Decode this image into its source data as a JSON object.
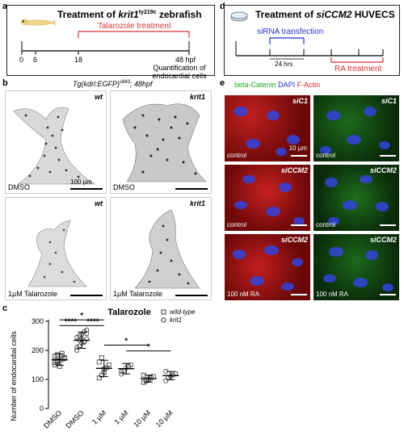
{
  "panel_a": {
    "label": "a",
    "title_prefix": "Treatment of ",
    "title_gene": "krit1",
    "title_sup": "ty219c",
    "title_suffix": " zebrafish",
    "treatment": "Talarozole treatment",
    "ticks": [
      "0",
      "6",
      "18",
      "48 hpf"
    ],
    "quant": "Quantification of endocardial cells"
  },
  "panel_b": {
    "label": "b",
    "title": "Tg(kdrl:EGFP)",
    "title_sup": "s843",
    "title_suffix": "; 48hpf",
    "panels": [
      {
        "genotype": "wt",
        "condition": "DMSO",
        "scalebar": "100 µm"
      },
      {
        "genotype": "krit1",
        "condition": "DMSO",
        "scalebar": ""
      },
      {
        "genotype": "wt",
        "condition": "1µM Talarozole",
        "scalebar": ""
      },
      {
        "genotype": "krit1",
        "condition": "1µM Talarozole",
        "scalebar": ""
      }
    ]
  },
  "panel_d": {
    "label": "d",
    "title_prefix": "Treatment of ",
    "title_gene": "siCCM2",
    "title_suffix": " HUVECS",
    "sirna": "siRNA transfection",
    "hrs": "24 hrs",
    "ra": "RA treatment"
  },
  "panel_e": {
    "label": "e",
    "legend": [
      {
        "text": "beta-Catenin",
        "color": "#22aa22"
      },
      {
        "text": "DAPI",
        "color": "#2233cc"
      },
      {
        "text": "F-Actin",
        "color": "#dd2222"
      }
    ],
    "rows": [
      {
        "left_tag": "siC1",
        "right_tag": "siC1",
        "left_cond": "control",
        "right_cond": "control",
        "scale": "10 µm"
      },
      {
        "left_tag": "siCCM2",
        "right_tag": "siCCM2",
        "left_cond": "control",
        "right_cond": "control",
        "scale": ""
      },
      {
        "left_tag": "siCCM2",
        "right_tag": "siCCM2",
        "left_cond": "100 nM RA",
        "right_cond": "100 nM RA",
        "scale": ""
      }
    ]
  },
  "panel_c": {
    "label": "c",
    "colors": {
      "marker": "#333333"
    }
  },
  "chart_data": {
    "type": "scatter",
    "title": "Talarozole",
    "ylabel": "Number of endocardial cells",
    "xlabel": "",
    "categories": [
      "DMSO",
      "DMSO",
      "1 µM",
      "1 µM",
      "10 µM",
      "10 µM"
    ],
    "ylim": [
      0,
      300
    ],
    "yticks": [
      0,
      100,
      200,
      300
    ],
    "legend": [
      {
        "marker": "square",
        "name": "wild-type"
      },
      {
        "marker": "circle",
        "name": "krit1"
      }
    ],
    "groups": [
      {
        "marker": "square",
        "mean": 168,
        "sd": 20,
        "points": [
          150,
          160,
          165,
          170,
          175,
          180,
          185,
          145,
          190,
          172,
          158,
          163
        ]
      },
      {
        "marker": "circle",
        "mean": 235,
        "sd": 28,
        "points": [
          200,
          215,
          225,
          230,
          240,
          245,
          250,
          255,
          265,
          270,
          210,
          235,
          238,
          228,
          258
        ]
      },
      {
        "marker": "square",
        "mean": 138,
        "sd": 28,
        "points": [
          105,
          115,
          125,
          140,
          150,
          160,
          175,
          135
        ]
      },
      {
        "marker": "circle",
        "mean": 137,
        "sd": 18,
        "points": [
          118,
          130,
          140,
          145,
          150,
          128
        ]
      },
      {
        "marker": "square",
        "mean": 103,
        "sd": 12,
        "points": [
          90,
          95,
          100,
          105,
          110,
          115
        ]
      },
      {
        "marker": "circle",
        "mean": 113,
        "sd": 14,
        "points": [
          95,
          105,
          110,
          115,
          120,
          128
        ]
      }
    ],
    "significance": [
      {
        "text": "*",
        "from": 0,
        "to": 2
      },
      {
        "text": "****",
        "from": 0,
        "to": 1
      },
      {
        "text": "****",
        "from": 1,
        "to": 2
      },
      {
        "text": "*",
        "from": 2,
        "to": 4
      },
      {
        "text": "*",
        "from": 3,
        "to": 5
      }
    ]
  }
}
